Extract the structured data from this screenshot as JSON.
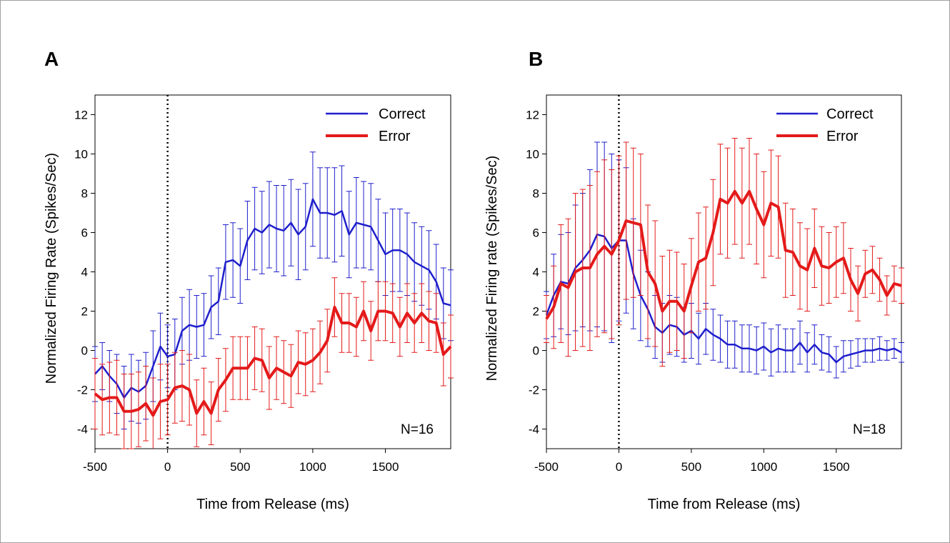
{
  "colors": {
    "correct": "#1f1fcc",
    "error": "#e41a1a"
  },
  "chart_data": [
    {
      "type": "line",
      "panel": "A",
      "xlabel": "Time from Release (ms)",
      "ylabel": "Normalized Firing Rate (Spikes/Sec)",
      "xlim": [
        -500,
        1950
      ],
      "ylim": [
        -5,
        13
      ],
      "xticks": [
        -500,
        0,
        500,
        1000,
        1500
      ],
      "yticks": [
        -4,
        -2,
        0,
        2,
        4,
        6,
        8,
        10,
        12
      ],
      "vline_x": 0,
      "annotation": "N=16",
      "legend": {
        "position": "top-right",
        "entries": [
          "Correct",
          "Error"
        ]
      },
      "series": [
        {
          "name": "Correct",
          "color_key": "correct",
          "x": [
            -500,
            -450,
            -400,
            -350,
            -300,
            -250,
            -200,
            -150,
            -100,
            -50,
            0,
            50,
            100,
            150,
            200,
            250,
            300,
            350,
            400,
            450,
            500,
            550,
            600,
            650,
            700,
            750,
            800,
            850,
            900,
            950,
            1000,
            1050,
            1100,
            1150,
            1200,
            1250,
            1300,
            1350,
            1400,
            1450,
            1500,
            1550,
            1600,
            1650,
            1700,
            1750,
            1800,
            1850,
            1900,
            1950
          ],
          "y": [
            -1.2,
            -0.8,
            -1.3,
            -1.7,
            -2.4,
            -1.9,
            -2.1,
            -1.8,
            -0.8,
            0.2,
            -0.3,
            -0.2,
            1.0,
            1.3,
            1.2,
            1.3,
            2.2,
            2.5,
            4.5,
            4.6,
            4.3,
            5.6,
            6.2,
            6.0,
            6.4,
            6.2,
            6.1,
            6.5,
            5.9,
            6.3,
            7.7,
            7.0,
            7.0,
            6.9,
            7.1,
            5.9,
            6.5,
            6.4,
            6.3,
            5.6,
            4.9,
            5.1,
            5.1,
            4.9,
            4.5,
            4.3,
            4.1,
            3.5,
            2.4,
            2.3
          ],
          "err": [
            1.4,
            1.2,
            1.3,
            1.5,
            1.6,
            1.7,
            1.6,
            1.7,
            1.8,
            1.7,
            1.6,
            1.8,
            1.7,
            1.8,
            1.6,
            1.6,
            1.6,
            1.7,
            1.9,
            1.9,
            1.9,
            2.0,
            2.1,
            2.1,
            2.2,
            2.2,
            2.3,
            2.2,
            2.3,
            2.2,
            2.4,
            2.3,
            2.3,
            2.4,
            2.3,
            2.2,
            2.3,
            2.2,
            2.2,
            2.1,
            2.1,
            2.1,
            2.1,
            2.1,
            2.0,
            2.0,
            2.0,
            1.9,
            1.8,
            1.8
          ]
        },
        {
          "name": "Error",
          "color_key": "error",
          "x": [
            -500,
            -450,
            -400,
            -350,
            -300,
            -250,
            -200,
            -150,
            -100,
            -50,
            0,
            50,
            100,
            150,
            200,
            250,
            300,
            350,
            400,
            450,
            500,
            550,
            600,
            650,
            700,
            750,
            800,
            850,
            900,
            950,
            1000,
            1050,
            1100,
            1150,
            1200,
            1250,
            1300,
            1350,
            1400,
            1450,
            1500,
            1550,
            1600,
            1650,
            1700,
            1750,
            1800,
            1850,
            1900,
            1950
          ],
          "y": [
            -2.2,
            -2.5,
            -2.4,
            -2.4,
            -3.1,
            -3.1,
            -3.0,
            -2.7,
            -3.3,
            -2.6,
            -2.5,
            -1.9,
            -1.8,
            -2.0,
            -3.2,
            -2.6,
            -3.2,
            -2.0,
            -1.5,
            -0.9,
            -0.9,
            -0.9,
            -0.4,
            -0.5,
            -1.4,
            -0.9,
            -1.1,
            -1.3,
            -0.6,
            -0.7,
            -0.5,
            -0.1,
            0.5,
            2.2,
            1.4,
            1.4,
            1.2,
            2.0,
            1.0,
            2.0,
            2.0,
            1.9,
            1.2,
            1.9,
            1.4,
            1.9,
            1.5,
            1.4,
            -0.2,
            0.2
          ],
          "err": [
            1.8,
            1.8,
            1.8,
            1.9,
            1.9,
            1.9,
            1.9,
            1.9,
            1.9,
            1.9,
            1.8,
            1.8,
            1.8,
            1.8,
            1.7,
            1.7,
            1.6,
            1.6,
            1.6,
            1.6,
            1.6,
            1.6,
            1.6,
            1.6,
            1.6,
            1.6,
            1.6,
            1.6,
            1.6,
            1.6,
            1.6,
            1.6,
            1.6,
            1.5,
            1.5,
            1.5,
            1.5,
            1.5,
            1.5,
            1.5,
            1.5,
            1.5,
            1.5,
            1.5,
            1.5,
            1.5,
            1.5,
            1.5,
            1.6,
            1.6
          ]
        }
      ]
    },
    {
      "type": "line",
      "panel": "B",
      "xlabel": "Time from Release (ms)",
      "ylabel": "Normalized Firing rate (Spikes/Sec)",
      "xlim": [
        -500,
        1950
      ],
      "ylim": [
        -5,
        13
      ],
      "xticks": [
        -500,
        0,
        500,
        1000,
        1500
      ],
      "yticks": [
        -4,
        -2,
        0,
        2,
        4,
        6,
        8,
        10,
        12
      ],
      "vline_x": 0,
      "annotation": "N=18",
      "legend": {
        "position": "top-right",
        "entries": [
          "Correct",
          "Error"
        ]
      },
      "series": [
        {
          "name": "Correct",
          "color_key": "correct",
          "x": [
            -500,
            -450,
            -400,
            -350,
            -300,
            -250,
            -200,
            -150,
            -100,
            -50,
            0,
            50,
            100,
            150,
            200,
            250,
            300,
            350,
            400,
            450,
            500,
            550,
            600,
            650,
            700,
            750,
            800,
            850,
            900,
            950,
            1000,
            1050,
            1100,
            1150,
            1200,
            1250,
            1300,
            1350,
            1400,
            1450,
            1500,
            1550,
            1600,
            1650,
            1700,
            1750,
            1800,
            1850,
            1900,
            1950
          ],
          "y": [
            1.8,
            2.8,
            3.5,
            3.4,
            4.2,
            4.6,
            5.1,
            5.9,
            5.8,
            5.2,
            5.6,
            5.6,
            3.9,
            2.8,
            2.1,
            1.2,
            0.9,
            1.3,
            1.2,
            0.8,
            1.0,
            0.6,
            1.1,
            0.8,
            0.6,
            0.3,
            0.3,
            0.1,
            0.1,
            0.0,
            0.2,
            -0.1,
            0.1,
            0.0,
            0.0,
            0.4,
            -0.1,
            0.3,
            -0.1,
            -0.2,
            -0.6,
            -0.3,
            -0.2,
            -0.1,
            0.0,
            0.0,
            0.1,
            0.0,
            0.1,
            -0.1
          ],
          "err": [
            1.2,
            2.1,
            2.4,
            2.6,
            3.2,
            3.4,
            4.1,
            4.7,
            4.8,
            4.8,
            4.1,
            3.7,
            2.8,
            2.3,
            1.9,
            1.6,
            1.5,
            1.5,
            1.5,
            1.4,
            1.4,
            1.3,
            1.3,
            1.3,
            1.2,
            1.2,
            1.2,
            1.2,
            1.2,
            1.2,
            1.2,
            1.2,
            1.2,
            1.1,
            1.1,
            1.1,
            1.0,
            1.0,
            0.9,
            0.9,
            0.8,
            0.8,
            0.7,
            0.7,
            0.6,
            0.6,
            0.6,
            0.5,
            0.5,
            0.5
          ]
        },
        {
          "name": "Error",
          "color_key": "error",
          "x": [
            -500,
            -450,
            -400,
            -350,
            -300,
            -250,
            -200,
            -150,
            -100,
            -50,
            0,
            50,
            100,
            150,
            200,
            250,
            300,
            350,
            400,
            450,
            500,
            550,
            600,
            650,
            700,
            750,
            800,
            850,
            900,
            950,
            1000,
            1050,
            1100,
            1150,
            1200,
            1250,
            1300,
            1350,
            1400,
            1450,
            1500,
            1550,
            1600,
            1650,
            1700,
            1750,
            1800,
            1850,
            1900,
            1950
          ],
          "y": [
            1.6,
            2.2,
            3.4,
            3.2,
            4.0,
            4.2,
            4.2,
            4.9,
            5.3,
            4.9,
            5.6,
            6.6,
            6.5,
            6.4,
            4.0,
            3.4,
            2.0,
            2.5,
            2.5,
            2.0,
            3.3,
            4.5,
            4.7,
            6.0,
            7.7,
            7.5,
            8.1,
            7.5,
            8.1,
            7.2,
            6.4,
            7.5,
            7.3,
            5.1,
            5.0,
            4.3,
            4.1,
            5.2,
            4.3,
            4.2,
            4.5,
            4.7,
            3.6,
            2.9,
            3.9,
            4.1,
            3.6,
            2.8,
            3.4,
            3.3
          ],
          "err": [
            1.2,
            2.1,
            3.0,
            3.5,
            4.0,
            4.0,
            4.2,
            4.2,
            4.4,
            4.3,
            4.3,
            4.0,
            3.8,
            3.6,
            3.4,
            3.2,
            2.8,
            2.6,
            2.5,
            2.4,
            2.4,
            2.5,
            2.6,
            2.7,
            2.8,
            2.8,
            2.7,
            2.8,
            2.7,
            2.8,
            2.7,
            2.7,
            2.6,
            2.4,
            2.2,
            2.2,
            2.1,
            2.0,
            2.0,
            1.8,
            1.8,
            1.8,
            1.6,
            1.4,
            1.2,
            1.2,
            1.1,
            1.0,
            0.9,
            0.9
          ]
        }
      ]
    }
  ]
}
